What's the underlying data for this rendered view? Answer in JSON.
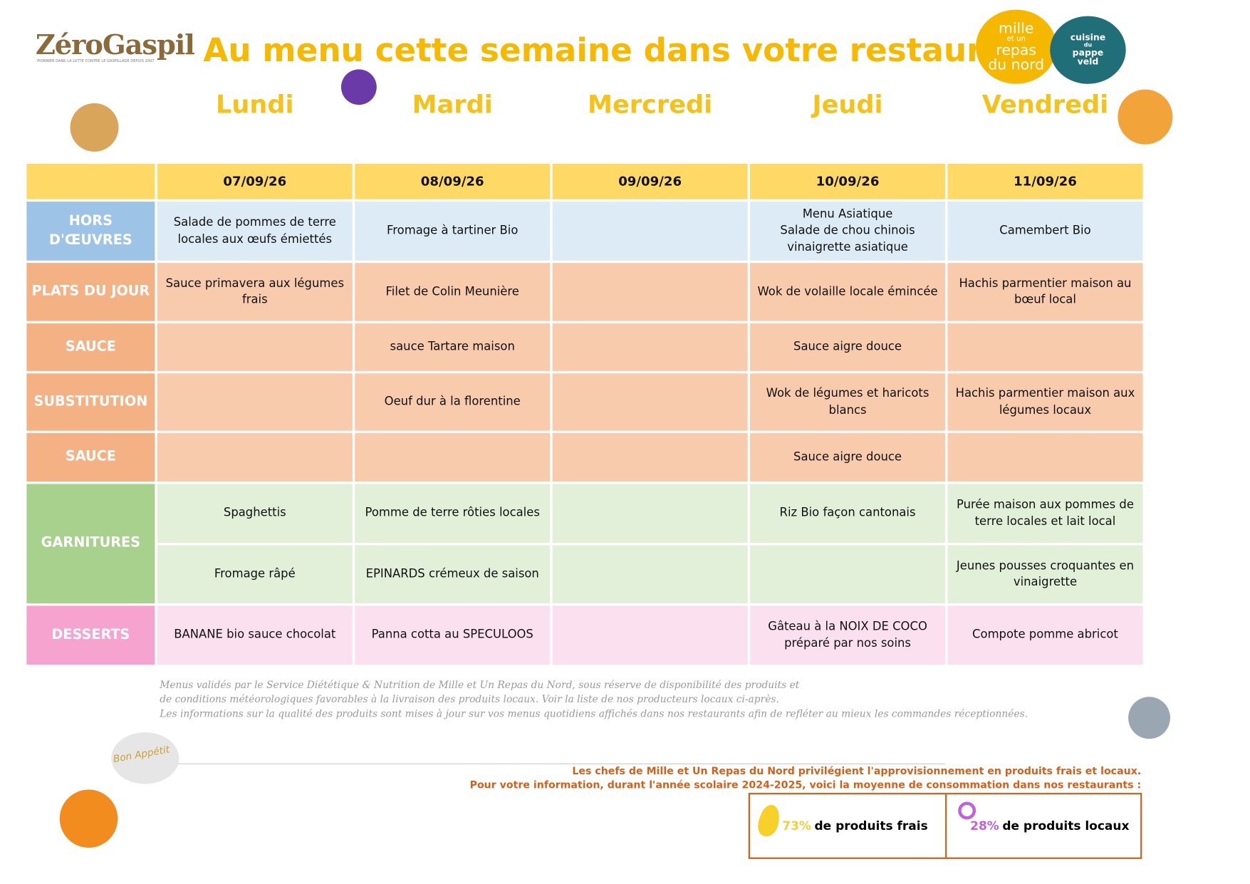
{
  "header": {
    "logo": "ZéroGaspil",
    "logo_tagline": "PIONNIER DANS LA LUTTE CONTRE LE GASPILLAGE DEPUIS 2007",
    "title": "Au menu cette semaine dans votre restaurant",
    "partner_logo": [
      "mille",
      "et un",
      "repas",
      "du nord"
    ],
    "partner_logo_2": [
      "cuisine",
      "du",
      "pappe",
      "veld"
    ]
  },
  "days": [
    "Lundi",
    "Mardi",
    "Mercredi",
    "Jeudi",
    "Vendredi"
  ],
  "table": {
    "dates": [
      "07/09/26",
      "08/09/26",
      "09/09/26",
      "10/09/26",
      "11/09/26"
    ],
    "rows": [
      {
        "label": "HORS D'ŒUVRES",
        "subrows": [
          [
            "Salade de pommes de terre locales aux œufs émiettés",
            "Fromage à tartiner Bio",
            null,
            [
              "Menu Asiatique",
              "Salade de chou chinois vinaigrette asiatique"
            ],
            "Camembert Bio"
          ]
        ]
      },
      {
        "label": "PLATS DU JOUR",
        "subrows": [
          [
            "Sauce primavera aux légumes frais",
            "Filet de Colin Meunière",
            null,
            "Wok de volaille locale émincée",
            "Hachis parmentier maison au bœuf local"
          ]
        ]
      },
      {
        "label": "SAUCE",
        "subrows": [
          [
            null,
            "sauce Tartare maison",
            null,
            "Sauce aigre douce",
            null
          ]
        ]
      },
      {
        "label": "SUBSTITUTION",
        "subrows": [
          [
            null,
            "Oeuf dur à la florentine",
            null,
            "Wok de légumes et haricots blancs",
            "Hachis parmentier maison aux légumes locaux"
          ]
        ]
      },
      {
        "label": "SAUCE",
        "subrows": [
          [
            null,
            null,
            null,
            "Sauce aigre douce",
            null
          ]
        ]
      },
      {
        "label": "GARNITURES",
        "subrows": [
          [
            "Spaghettis",
            "Pomme de terre rôties locales",
            null,
            "Riz Bio façon cantonais",
            "Purée maison aux pommes de terre locales et lait local"
          ],
          [
            "Fromage râpé",
            "EPINARDS crémeux de saison",
            null,
            null,
            "Jeunes pousses croquantes en vinaigrette"
          ]
        ]
      },
      {
        "label": "DESSERTS",
        "subrows": [
          [
            "BANANE bio sauce chocolat",
            "Panna cotta au SPECULOOS",
            null,
            "Gâteau à la NOIX DE COCO préparé par nos soins",
            "Compote pomme abricot"
          ]
        ]
      }
    ]
  },
  "notes": [
    "Menus validés par le Service Diététique & Nutrition de Mille et Un Repas du Nord, sous réserve de disponibilité des produits et",
    "de conditions météorologiques favorables à la livraison des produits locaux. Voir la liste de nos producteurs locaux ci-après.",
    "Les informations sur la qualité des produits sont mises à jour sur vos menus quotidiens affichés dans nos restaurants afin de refléter au mieux les commandes réceptionnées."
  ],
  "sourcing": [
    "Les chefs de Mille et Un Repas du Nord privilégient l'approvisionnement en produits frais et locaux.",
    "Pour votre information, durant l'année scolaire 2024-2025, voici la moyenne de consommation dans nos restaurants :"
  ],
  "stats": [
    {
      "value": "73%",
      "text": "de produits frais"
    },
    {
      "value": "28%",
      "text": "de produits locaux"
    }
  ],
  "cloud": "Bon Appétit"
}
